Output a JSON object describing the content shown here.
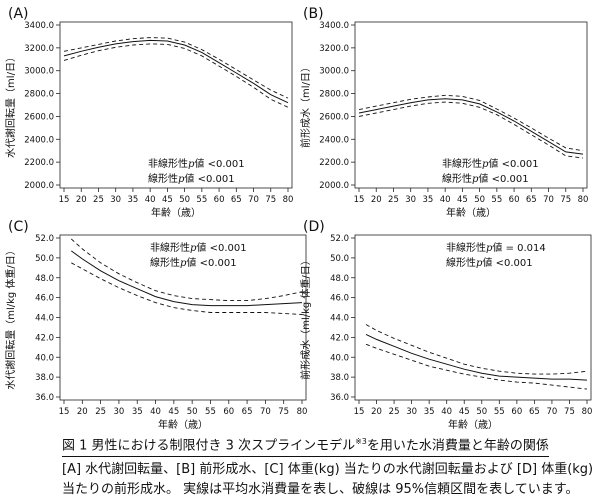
{
  "chart_data": [
    {
      "type": "line",
      "panel_label": "(A)",
      "ylabel": "水代謝回転量（ml/日）",
      "xlabel": "年齢（歳）",
      "xlim": [
        15,
        80
      ],
      "ylim": [
        2000,
        3400
      ],
      "xticks": [
        15,
        20,
        25,
        30,
        35,
        40,
        45,
        50,
        55,
        60,
        65,
        70,
        75,
        80
      ],
      "yticks": [
        2000,
        2200,
        2400,
        2600,
        2800,
        3000,
        3200,
        3400
      ],
      "ytick_labels": [
        "2000.0",
        "2200.0",
        "2400.0",
        "2600.0",
        "2800.0",
        "3000.0",
        "3200.0",
        "3400.0"
      ],
      "annotations": [
        {
          "prefix": "非線形性",
          "p": "p",
          "suffix": "値 <0.001"
        },
        {
          "prefix": "線形性",
          "p": "p",
          "suffix": "値 <0.001"
        }
      ],
      "x": [
        15,
        20,
        25,
        30,
        35,
        40,
        45,
        50,
        55,
        60,
        65,
        70,
        75,
        80
      ],
      "series": [
        {
          "style": "solid",
          "values": [
            3130,
            3170,
            3205,
            3235,
            3255,
            3265,
            3260,
            3225,
            3160,
            3070,
            2980,
            2890,
            2790,
            2720
          ]
        },
        {
          "style": "dashed",
          "values": [
            3170,
            3200,
            3230,
            3260,
            3280,
            3290,
            3285,
            3250,
            3185,
            3100,
            3010,
            2920,
            2830,
            2760
          ]
        },
        {
          "style": "dashed",
          "values": [
            3090,
            3135,
            3175,
            3205,
            3225,
            3235,
            3230,
            3195,
            3130,
            3040,
            2950,
            2855,
            2750,
            2680
          ]
        }
      ]
    },
    {
      "type": "line",
      "panel_label": "(B)",
      "ylabel": "前形成水（ml/日）",
      "xlabel": "年齢（歳）",
      "xlim": [
        15,
        80
      ],
      "ylim": [
        2000,
        3400
      ],
      "xticks": [
        15,
        20,
        25,
        30,
        35,
        40,
        45,
        50,
        55,
        60,
        65,
        70,
        75,
        80
      ],
      "yticks": [
        2000,
        2200,
        2400,
        2600,
        2800,
        3000,
        3200,
        3400
      ],
      "ytick_labels": [
        "2000.0",
        "2200.0",
        "2400.0",
        "2600.0",
        "2800.0",
        "3000.0",
        "3200.0",
        "3400.0"
      ],
      "annotations": [
        {
          "prefix": "非線形性",
          "p": "p",
          "suffix": "値 <0.001"
        },
        {
          "prefix": "線形性",
          "p": "p",
          "suffix": "値 <0.001"
        }
      ],
      "x": [
        15,
        20,
        25,
        30,
        35,
        40,
        45,
        50,
        55,
        60,
        65,
        70,
        75,
        80
      ],
      "series": [
        {
          "style": "solid",
          "values": [
            2630,
            2660,
            2690,
            2720,
            2745,
            2755,
            2745,
            2710,
            2640,
            2560,
            2470,
            2380,
            2290,
            2270
          ]
        },
        {
          "style": "dashed",
          "values": [
            2660,
            2690,
            2720,
            2750,
            2770,
            2785,
            2775,
            2740,
            2665,
            2585,
            2500,
            2410,
            2325,
            2300
          ]
        },
        {
          "style": "dashed",
          "values": [
            2600,
            2630,
            2660,
            2690,
            2715,
            2725,
            2715,
            2680,
            2615,
            2530,
            2440,
            2350,
            2255,
            2235
          ]
        }
      ]
    },
    {
      "type": "line",
      "panel_label": "(C)",
      "ylabel": "水代謝回転量（ml/kg 体重/日）",
      "xlabel": "年齢（歳）",
      "xlim": [
        15,
        80
      ],
      "ylim": [
        36,
        52
      ],
      "xticks": [
        15,
        20,
        25,
        30,
        35,
        40,
        45,
        50,
        55,
        60,
        65,
        70,
        75,
        80
      ],
      "yticks": [
        36,
        38,
        40,
        42,
        44,
        46,
        48,
        50,
        52
      ],
      "ytick_labels": [
        "36.0",
        "38.0",
        "40.0",
        "42.0",
        "44.0",
        "46.0",
        "48.0",
        "50.0",
        "52.0"
      ],
      "annotations": [
        {
          "prefix": "非線形性",
          "p": "p",
          "suffix": "値 <0.001"
        },
        {
          "prefix": "線形性",
          "p": "p",
          "suffix": "値 <0.001"
        }
      ],
      "x": [
        17,
        20,
        25,
        30,
        35,
        40,
        45,
        50,
        55,
        60,
        65,
        70,
        75,
        80
      ],
      "series": [
        {
          "style": "solid",
          "values": [
            50.7,
            49.9,
            48.7,
            47.7,
            46.9,
            46.1,
            45.6,
            45.3,
            45.2,
            45.2,
            45.2,
            45.3,
            45.4,
            45.5
          ]
        },
        {
          "style": "dashed",
          "values": [
            51.9,
            50.9,
            49.5,
            48.4,
            47.5,
            46.7,
            46.2,
            45.9,
            45.8,
            45.7,
            45.7,
            45.9,
            46.2,
            46.6
          ]
        },
        {
          "style": "dashed",
          "values": [
            49.5,
            48.9,
            47.9,
            47.0,
            46.2,
            45.5,
            45.0,
            44.7,
            44.5,
            44.5,
            44.5,
            44.5,
            44.4,
            44.3
          ]
        }
      ]
    },
    {
      "type": "line",
      "panel_label": "(D)",
      "ylabel": "前形成水（ml/kg 体重/日）",
      "xlabel": "年齢（歳）",
      "xlim": [
        15,
        80
      ],
      "ylim": [
        36,
        52
      ],
      "xticks": [
        15,
        20,
        25,
        30,
        35,
        40,
        45,
        50,
        55,
        60,
        65,
        70,
        75,
        80
      ],
      "yticks": [
        36,
        38,
        40,
        42,
        44,
        46,
        48,
        50,
        52
      ],
      "ytick_labels": [
        "36.0",
        "38.0",
        "40.0",
        "42.0",
        "44.0",
        "46.0",
        "48.0",
        "50.0",
        "52.0"
      ],
      "annotations": [
        {
          "prefix": "非線形性",
          "p": "p",
          "suffix": "値 = 0.014"
        },
        {
          "prefix": "線形性",
          "p": "p",
          "suffix": "値 <0.001"
        }
      ],
      "x": [
        17,
        20,
        25,
        30,
        35,
        40,
        45,
        50,
        55,
        60,
        65,
        70,
        75,
        80
      ],
      "series": [
        {
          "style": "solid",
          "values": [
            42.3,
            41.8,
            41.1,
            40.4,
            39.8,
            39.3,
            38.8,
            38.4,
            38.1,
            38.0,
            37.9,
            37.8,
            37.8,
            37.7
          ]
        },
        {
          "style": "dashed",
          "values": [
            43.3,
            42.7,
            41.9,
            41.2,
            40.5,
            39.9,
            39.3,
            38.9,
            38.6,
            38.4,
            38.3,
            38.3,
            38.4,
            38.6
          ]
        },
        {
          "style": "dashed",
          "values": [
            41.3,
            40.9,
            40.3,
            39.7,
            39.1,
            38.7,
            38.3,
            38.0,
            37.7,
            37.5,
            37.4,
            37.2,
            37.0,
            36.8
          ]
        }
      ]
    }
  ],
  "caption": {
    "title_main": "図 1 男性における制限付き 3 次スプラインモデル",
    "title_sup": "※3",
    "title_tail": "を用いた水消費量と年齢の関係",
    "body_line1": "[A] 水代謝回転量、[B] 前形成水、[C] 体重(kg) 当たりの水代謝回転量および [D] 体重(kg)",
    "body_line2": "当たりの前形成水。 実線は平均水消費量を表し、破線は 95%信頼区間を表しています。"
  }
}
